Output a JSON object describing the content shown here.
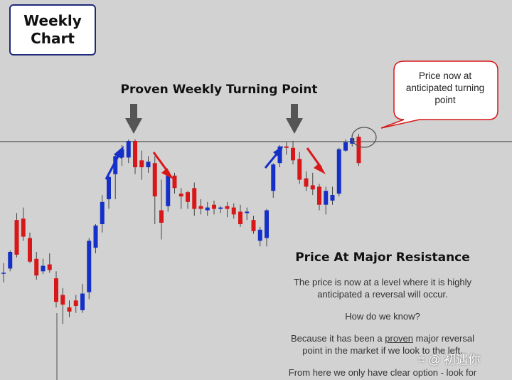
{
  "tag": {
    "line1": "Weekly",
    "line2": "Chart"
  },
  "heading": "Proven Weekly Turning Point",
  "callout": {
    "line1": "Price now at",
    "line2": "anticipated turning",
    "line3": "point"
  },
  "subheading": "Price At Major Resistance",
  "paragraph1": {
    "line1": "The price is now at a level where it is highly",
    "line2": "anticipated a reversal will occur."
  },
  "paragraph2": "How do we know?",
  "paragraph3": {
    "part1": "Because it has been a ",
    "underlined": "proven",
    "part2": " major reversal",
    "line2": "point in the market if we look to the left."
  },
  "paragraph4": "From here we only have clear option - look for",
  "watermark": "⌗ @ 初遇你",
  "colors": {
    "background": "#d2d2d2",
    "bullish": "#1530c8",
    "bearish": "#d81818",
    "arrow": "#555555"
  },
  "chart_data": {
    "type": "candlestick",
    "ylim": [
      0,
      100
    ],
    "resistance_level": 79.6,
    "series": [
      {
        "o": 32.5,
        "h": 36.0,
        "l": 29.0,
        "c": 32.5
      },
      {
        "o": 34.0,
        "h": 40.5,
        "l": 33.0,
        "c": 40.0
      },
      {
        "o": 51.5,
        "h": 54.0,
        "l": 38.0,
        "c": 39.0
      },
      {
        "o": 52.0,
        "h": 56.0,
        "l": 44.0,
        "c": 45.5
      },
      {
        "o": 45.0,
        "h": 47.0,
        "l": 36.0,
        "c": 36.5
      },
      {
        "o": 37.5,
        "h": 40.0,
        "l": 30.0,
        "c": 31.5
      },
      {
        "o": 33.0,
        "h": 37.5,
        "l": 32.0,
        "c": 35.0
      },
      {
        "o": 35.5,
        "h": 39.5,
        "l": 32.5,
        "c": 33.5
      },
      {
        "o": 30.5,
        "h": 33.0,
        "l": 20.0,
        "c": 22.0
      },
      {
        "o": 24.5,
        "h": 27.0,
        "l": 14.0,
        "c": 21.0
      },
      {
        "o": 20.0,
        "h": 22.5,
        "l": 16.5,
        "c": 18.5
      },
      {
        "o": 22.5,
        "h": 24.5,
        "l": 18.0,
        "c": 20.5
      },
      {
        "o": 19.0,
        "h": 28.5,
        "l": 18.0,
        "c": 25.0
      },
      {
        "o": 25.5,
        "h": 45.0,
        "l": 23.0,
        "c": 44.0
      },
      {
        "o": 41.5,
        "h": 50.0,
        "l": 39.5,
        "c": 49.5
      },
      {
        "o": 50.0,
        "h": 60.5,
        "l": 47.0,
        "c": 58.0
      },
      {
        "o": 59.0,
        "h": 68.0,
        "l": 55.5,
        "c": 67.0
      },
      {
        "o": 68.0,
        "h": 75.0,
        "l": 59.0,
        "c": 74.5
      },
      {
        "o": 74.0,
        "h": 78.5,
        "l": 71.0,
        "c": 77.0
      },
      {
        "o": 74.0,
        "h": 80.5,
        "l": 72.0,
        "c": 80.0
      },
      {
        "o": 80.0,
        "h": 80.5,
        "l": 68.0,
        "c": 70.5
      },
      {
        "o": 73.0,
        "h": 76.5,
        "l": 66.0,
        "c": 70.5
      },
      {
        "o": 70.5,
        "h": 74.5,
        "l": 68.5,
        "c": 72.5
      },
      {
        "o": 72.0,
        "h": 74.5,
        "l": 50.0,
        "c": 60.0
      },
      {
        "o": 55.0,
        "h": 66.0,
        "l": 44.5,
        "c": 50.5
      },
      {
        "o": 56.5,
        "h": 68.0,
        "l": 54.5,
        "c": 67.5
      },
      {
        "o": 67.5,
        "h": 68.5,
        "l": 61.0,
        "c": 63.0
      },
      {
        "o": 61.0,
        "h": 63.0,
        "l": 55.5,
        "c": 60.0
      },
      {
        "o": 61.5,
        "h": 62.0,
        "l": 55.5,
        "c": 58.0
      },
      {
        "o": 63.0,
        "h": 65.0,
        "l": 53.0,
        "c": 55.5
      },
      {
        "o": 56.5,
        "h": 59.0,
        "l": 53.5,
        "c": 55.5
      },
      {
        "o": 55.0,
        "h": 58.0,
        "l": 53.0,
        "c": 56.0
      },
      {
        "o": 57.0,
        "h": 58.5,
        "l": 53.5,
        "c": 55.5
      },
      {
        "o": 55.5,
        "h": 56.5,
        "l": 54.0,
        "c": 56.0
      },
      {
        "o": 56.5,
        "h": 58.0,
        "l": 52.5,
        "c": 55.5
      },
      {
        "o": 56.0,
        "h": 57.5,
        "l": 52.0,
        "c": 53.5
      },
      {
        "o": 54.5,
        "h": 57.0,
        "l": 49.0,
        "c": 50.0
      },
      {
        "o": 54.0,
        "h": 56.0,
        "l": 51.5,
        "c": 54.5
      },
      {
        "o": 51.5,
        "h": 53.0,
        "l": 46.5,
        "c": 47.5
      },
      {
        "o": 44.0,
        "h": 49.0,
        "l": 42.0,
        "c": 48.0
      },
      {
        "o": 45.0,
        "h": 55.5,
        "l": 42.0,
        "c": 55.0
      },
      {
        "o": 62.0,
        "h": 72.0,
        "l": 59.5,
        "c": 71.5
      },
      {
        "o": 72.0,
        "h": 78.5,
        "l": 70.5,
        "c": 78.0
      },
      {
        "o": 78.0,
        "h": 79.5,
        "l": 75.0,
        "c": 77.5
      },
      {
        "o": 77.5,
        "h": 80.0,
        "l": 71.5,
        "c": 73.0
      },
      {
        "o": 73.5,
        "h": 76.0,
        "l": 64.5,
        "c": 66.0
      },
      {
        "o": 66.5,
        "h": 69.0,
        "l": 62.0,
        "c": 63.5
      },
      {
        "o": 64.0,
        "h": 68.5,
        "l": 60.5,
        "c": 62.5
      },
      {
        "o": 63.5,
        "h": 64.5,
        "l": 55.0,
        "c": 57.0
      },
      {
        "o": 57.0,
        "h": 63.5,
        "l": 53.5,
        "c": 62.0
      },
      {
        "o": 58.5,
        "h": 63.5,
        "l": 57.0,
        "c": 60.5
      },
      {
        "o": 61.0,
        "h": 77.5,
        "l": 60.0,
        "c": 77.0
      },
      {
        "o": 76.5,
        "h": 80.5,
        "l": 76.0,
        "c": 79.5
      },
      {
        "o": 79.0,
        "h": 82.0,
        "l": 78.0,
        "c": 81.0
      },
      {
        "o": 81.5,
        "h": 82.5,
        "l": 71.0,
        "c": 72.0
      }
    ]
  }
}
